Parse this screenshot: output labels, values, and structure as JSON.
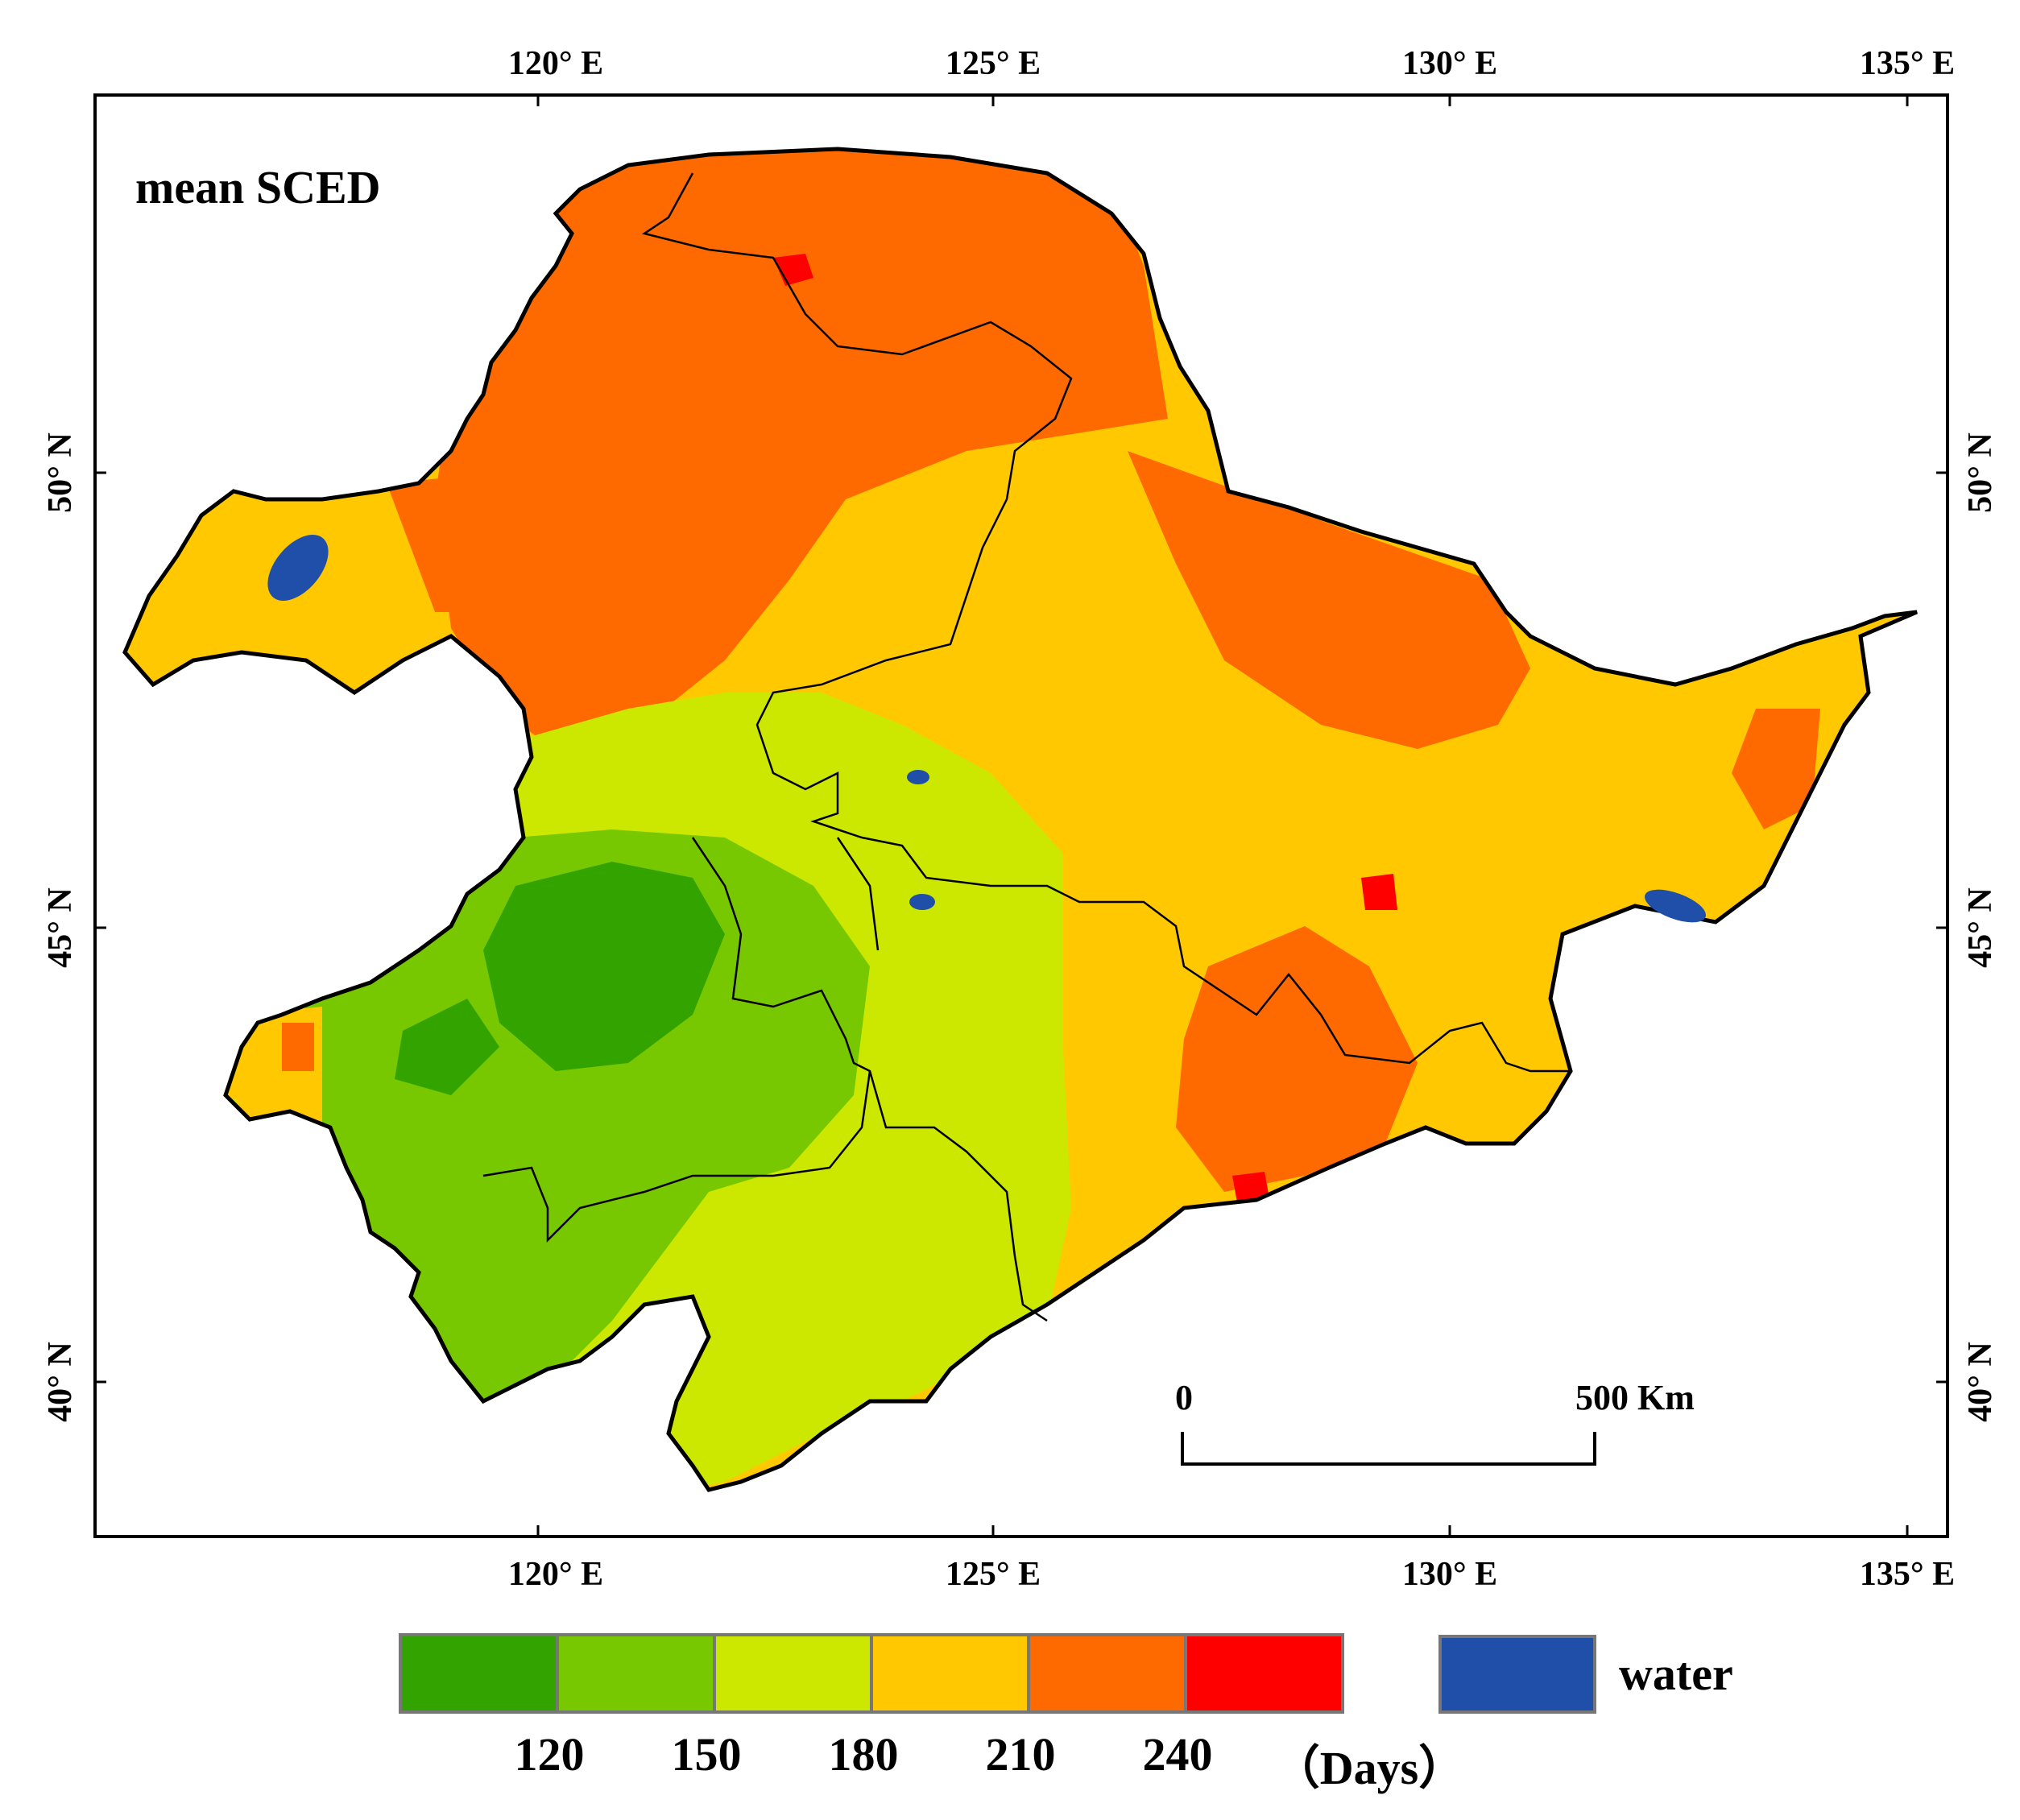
{
  "map": {
    "title": "mean SCED",
    "lon_ticks": [
      "120° E",
      "125° E",
      "130° E",
      "135° E"
    ],
    "lat_ticks": [
      "50° N",
      "45° N",
      "40° N"
    ],
    "scale_bar": {
      "start_label": "0",
      "end_label": "500 Km"
    }
  },
  "legend": {
    "colors": [
      "#33a300",
      "#77c800",
      "#cde800",
      "#ffc800",
      "#ff6a00",
      "#ff0000"
    ],
    "break_labels": [
      "120",
      "150",
      "180",
      "210",
      "240"
    ],
    "unit": "（Days）",
    "water_color": "#1f4fa8",
    "water_label": "water"
  }
}
